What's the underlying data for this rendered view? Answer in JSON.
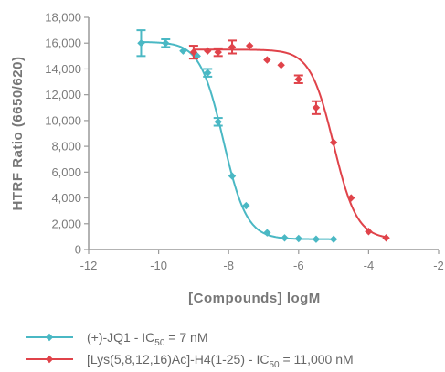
{
  "chart_data": {
    "type": "scatter",
    "xlabel": "[Compounds] logM",
    "ylabel": "HTRF Ratio (6650/620)",
    "xlim": [
      -12,
      -2
    ],
    "ylim": [
      0,
      18000
    ],
    "x_ticks": [
      -12,
      -10,
      -8,
      -6,
      -4,
      -2
    ],
    "x_tick_labels": [
      "-12",
      "-10",
      "-8",
      "-6",
      "-4",
      "-2"
    ],
    "y_ticks": [
      0,
      2000,
      4000,
      6000,
      8000,
      10000,
      12000,
      14000,
      16000,
      18000
    ],
    "y_tick_labels": [
      "0",
      "2,000",
      "4,000",
      "6,000",
      "8,000",
      "10,000",
      "12,000",
      "14,000",
      "16,000",
      "18,000"
    ],
    "grid": false,
    "legend_position": "bottom",
    "series": [
      {
        "name": "(+)-JQ1 - IC",
        "name_sub": "50",
        "name_suffix": " = 7 nM",
        "color": "#4ab8c4",
        "points": [
          {
            "x": -10.5,
            "y": 16000,
            "err": 1000
          },
          {
            "x": -9.8,
            "y": 16000,
            "err": 300
          },
          {
            "x": -9.3,
            "y": 15400,
            "err": 0
          },
          {
            "x": -8.9,
            "y": 15000,
            "err": 0
          },
          {
            "x": -8.6,
            "y": 13700,
            "err": 300
          },
          {
            "x": -8.3,
            "y": 9900,
            "err": 300
          },
          {
            "x": -7.9,
            "y": 5700,
            "err": 0
          },
          {
            "x": -7.5,
            "y": 3400,
            "err": 0
          },
          {
            "x": -6.9,
            "y": 1300,
            "err": 0
          },
          {
            "x": -6.4,
            "y": 900,
            "err": 0
          },
          {
            "x": -6.0,
            "y": 850,
            "err": 0
          },
          {
            "x": -5.5,
            "y": 800,
            "err": 0
          },
          {
            "x": -5.0,
            "y": 800,
            "err": 0
          }
        ],
        "fit": {
          "top": 16100,
          "bottom": 800,
          "logIC50": -8.15,
          "hill": 1.3
        }
      },
      {
        "name": "[Lys(5,8,12,16)Ac]-H4(1-25) - IC",
        "name_sub": "50",
        "name_suffix": " = 11,000 nM",
        "color": "#e0434a",
        "points": [
          {
            "x": -9.0,
            "y": 15300,
            "err": 500
          },
          {
            "x": -8.6,
            "y": 15400,
            "err": 0
          },
          {
            "x": -8.3,
            "y": 15300,
            "err": 300
          },
          {
            "x": -7.9,
            "y": 15700,
            "err": 500
          },
          {
            "x": -7.4,
            "y": 15800,
            "err": 0
          },
          {
            "x": -6.9,
            "y": 14700,
            "err": 0
          },
          {
            "x": -6.5,
            "y": 14300,
            "err": 0
          },
          {
            "x": -6.0,
            "y": 13200,
            "err": 300
          },
          {
            "x": -5.5,
            "y": 11000,
            "err": 500
          },
          {
            "x": -5.0,
            "y": 8300,
            "err": 0
          },
          {
            "x": -4.5,
            "y": 4000,
            "err": 0
          },
          {
            "x": -4.0,
            "y": 1400,
            "err": 0
          },
          {
            "x": -3.5,
            "y": 900,
            "err": 0
          }
        ],
        "fit": {
          "top": 15500,
          "bottom": 800,
          "logIC50": -5.0,
          "hill": 1.3
        }
      }
    ]
  }
}
